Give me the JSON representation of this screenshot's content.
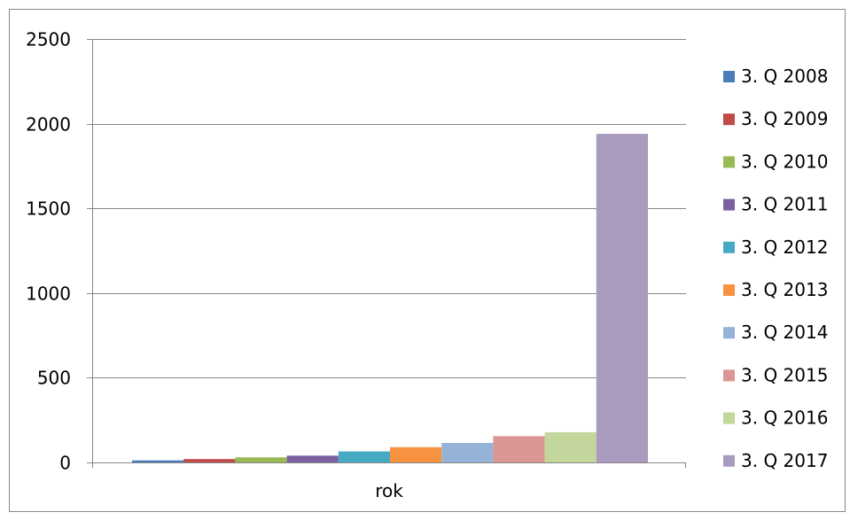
{
  "chart_data": {
    "type": "bar",
    "title": "",
    "xlabel": "rok",
    "ylabel": "",
    "categories": [
      "rok"
    ],
    "ylim": [
      0,
      2500
    ],
    "yticks": [
      0,
      500,
      1000,
      1500,
      2000,
      2500
    ],
    "grid": true,
    "legend_position": "right",
    "series": [
      {
        "name": "3. Q 2008",
        "values": [
          12
        ],
        "color": "#4A7EBB"
      },
      {
        "name": "3. Q 2009",
        "values": [
          20
        ],
        "color": "#BE4B48"
      },
      {
        "name": "3. Q 2010",
        "values": [
          30
        ],
        "color": "#98B954"
      },
      {
        "name": "3. Q 2011",
        "values": [
          40
        ],
        "color": "#7D60A0"
      },
      {
        "name": "3. Q 2012",
        "values": [
          65
        ],
        "color": "#46AAC5"
      },
      {
        "name": "3. Q 2013",
        "values": [
          90
        ],
        "color": "#F69240"
      },
      {
        "name": "3. Q 2014",
        "values": [
          115
        ],
        "color": "#95B3D7"
      },
      {
        "name": "3. Q 2015",
        "values": [
          155
        ],
        "color": "#D99694"
      },
      {
        "name": "3. Q 2016",
        "values": [
          178
        ],
        "color": "#C3D69B"
      },
      {
        "name": "3. Q 2017",
        "values": [
          1940
        ],
        "color": "#A99BBD"
      }
    ]
  }
}
